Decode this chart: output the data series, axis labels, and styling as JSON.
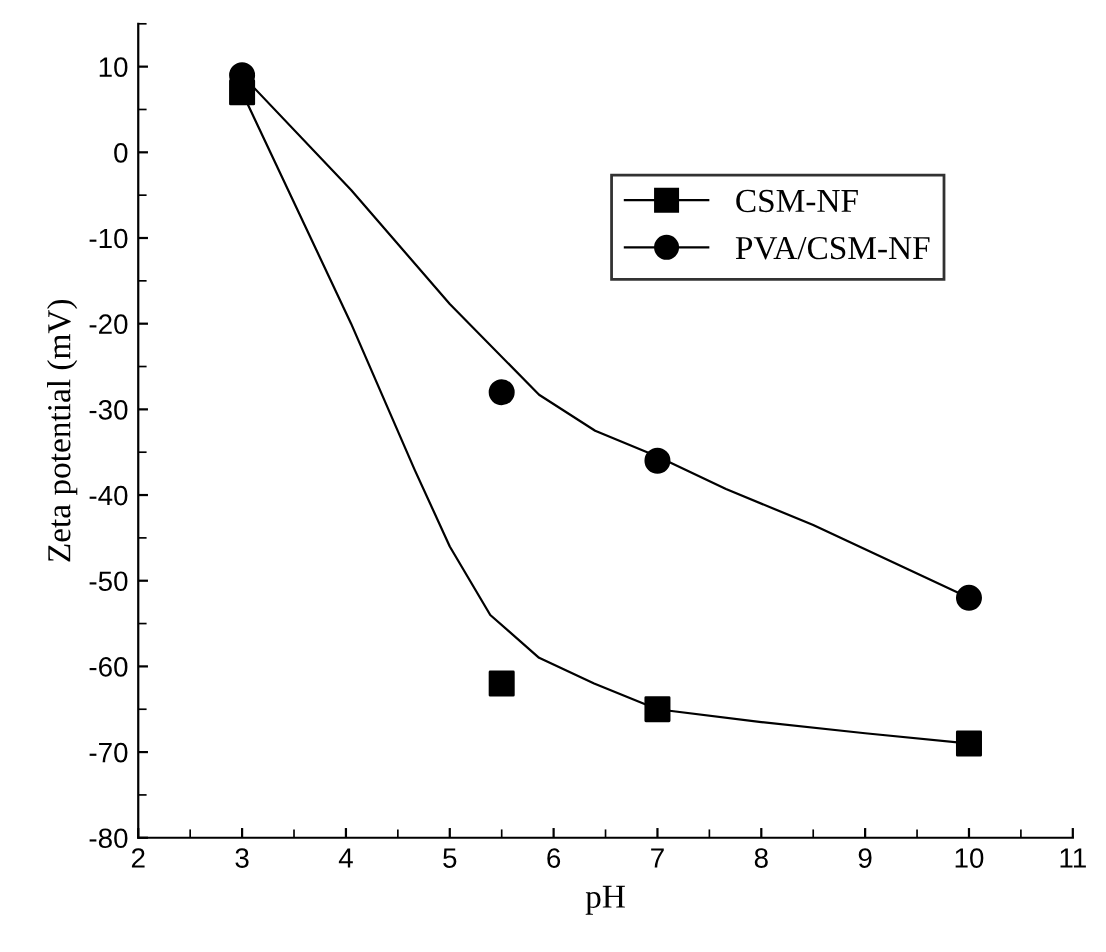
{
  "chart_data": {
    "type": "scatter",
    "xlabel": "pH",
    "ylabel": "Zeta potential (mV)",
    "xlim": [
      2,
      11
    ],
    "ylim": [
      -80,
      15
    ],
    "xticks": [
      2,
      3,
      4,
      5,
      6,
      7,
      8,
      9,
      10,
      11
    ],
    "yticks": [
      -80,
      -70,
      -60,
      -50,
      -40,
      -30,
      -20,
      -10,
      0,
      10
    ],
    "grid": false,
    "legend": "right",
    "series": [
      {
        "name": "CSM-NF",
        "color": "#000000",
        "marker": "square",
        "x": [
          3,
          5.5,
          7,
          10
        ],
        "values": [
          7,
          -62,
          -65,
          -69
        ]
      },
      {
        "name": "PVA/CSM-NF",
        "color": "#000000",
        "marker": "circle",
        "x": [
          3,
          5.5,
          7,
          10
        ],
        "values": [
          9,
          -28,
          -36,
          -52
        ]
      },
      {
        "type": "line",
        "color": "#000000",
        "marker": "none",
        "line_style": "solid",
        "x": [
          3,
          4.05,
          4.66,
          5.0,
          5.39,
          5.86,
          6.39,
          7,
          8,
          9,
          10
        ],
        "values": [
          7,
          -20,
          -37,
          -46,
          -54,
          -59,
          -62,
          -65,
          -66.5,
          -67.8,
          -69
        ]
      },
      {
        "type": "line",
        "color": "#000000",
        "marker": "none",
        "line_style": "solid",
        "x": [
          3,
          4.05,
          5.0,
          5.86,
          6.4,
          7,
          7.66,
          8.5,
          10
        ],
        "values": [
          9,
          -4.4,
          -17.7,
          -28.3,
          -32.5,
          -35.5,
          -39.3,
          -43.5,
          -52
        ]
      }
    ]
  }
}
